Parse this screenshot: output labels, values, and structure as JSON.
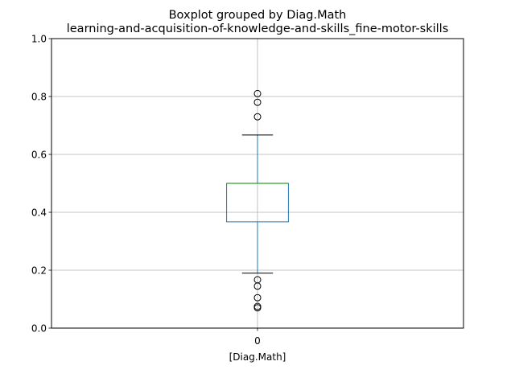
{
  "chart_data": {
    "type": "box",
    "title": "Boxplot grouped by Diag.Math",
    "subtitle": "learning-and-acquisition-of-knowledge-and-skills_fine-motor-skills",
    "xlabel": "[Diag.Math]",
    "ylabel": "",
    "categories": [
      "0"
    ],
    "ylim": [
      0,
      1.0
    ],
    "yticks": [
      "0.0",
      "0.2",
      "0.4",
      "0.6",
      "0.8",
      "1.0"
    ],
    "grid": true,
    "boxes": [
      {
        "category": "0",
        "whisker_low": 0.19,
        "q1": 0.367,
        "median": 0.5,
        "q3": 0.5,
        "whisker_high": 0.667,
        "outliers": [
          0.81,
          0.78,
          0.73,
          0.167,
          0.145,
          0.105,
          0.075,
          0.07
        ]
      }
    ],
    "colors": {
      "box": "#1f77b4",
      "median": "#2ca02c",
      "whisker": "#1f77b4",
      "cap": "#000000",
      "outlier": "#000000",
      "grid": "#b0b0b0"
    }
  }
}
